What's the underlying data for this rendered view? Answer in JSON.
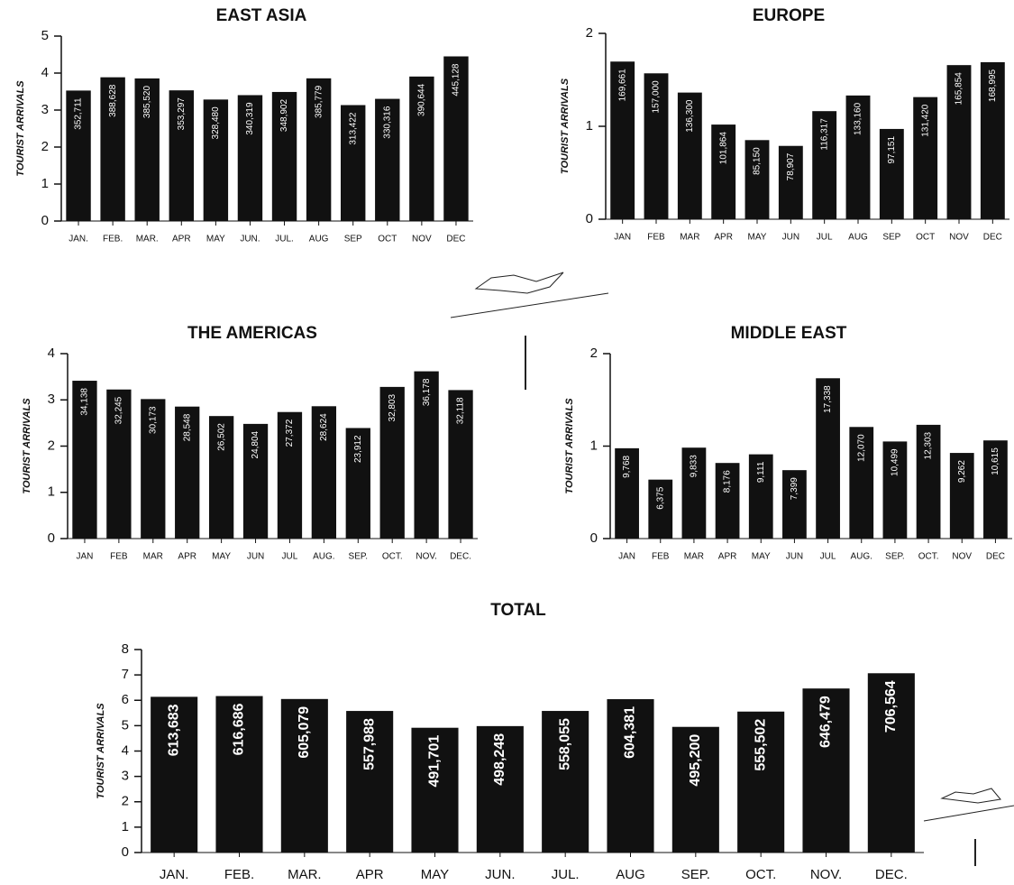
{
  "chart_data": [
    {
      "type": "bar",
      "title": "EAST ASIA",
      "y_label": "TOURIST ARRIVALS",
      "color": "#111111",
      "categories": [
        "JAN.",
        "FEB.",
        "MAR.",
        "APR",
        "MAY",
        "JUN.",
        "JUL.",
        "AUG",
        "SEP",
        "OCT",
        "NOV",
        "DEC"
      ],
      "values": [
        3.52711,
        3.88628,
        3.8552,
        3.53297,
        3.2848,
        3.40319,
        3.48902,
        3.85779,
        3.13422,
        3.30316,
        3.90644,
        4.45128
      ],
      "value_labels": [
        "352,711",
        "388,628",
        "385,520",
        "353,297",
        "328,480",
        "340,319",
        "348,902",
        "385,779",
        "313,422",
        "330,316",
        "390,644",
        "445,128"
      ],
      "ylim": [
        0,
        5
      ],
      "yticks": [
        0,
        1,
        2,
        3,
        4,
        5
      ]
    },
    {
      "type": "bar",
      "title": "EUROPE",
      "y_label": "TOURIST ARRIVALS",
      "color": "#111111",
      "categories": [
        "JAN",
        "FEB",
        "MAR",
        "APR",
        "MAY",
        "JUN",
        "JUL",
        "AUG",
        "SEP",
        "OCT",
        "NOV",
        "DEC"
      ],
      "values": [
        1.69661,
        1.57,
        1.363,
        1.01864,
        0.8515,
        0.78907,
        1.16317,
        1.3316,
        0.97151,
        1.3142,
        1.65854,
        1.68995
      ],
      "value_labels": [
        "169,661",
        "157,000",
        "136,300",
        "101,864",
        "85,150",
        "78,907",
        "116,317",
        "133,160",
        "97,151",
        "131,420",
        "165,854",
        "168,995"
      ],
      "ylim": [
        0,
        2
      ],
      "yticks": [
        0,
        1,
        2
      ]
    },
    {
      "type": "bar",
      "title": "THE AMERICAS",
      "y_label": "TOURIST ARRIVALS",
      "color": "#111111",
      "categories": [
        "JAN",
        "FEB",
        "MAR",
        "APR",
        "MAY",
        "JUN",
        "JUL",
        "AUG.",
        "SEP.",
        "OCT.",
        "NOV.",
        "DEC."
      ],
      "values": [
        3.4138,
        3.2245,
        3.0173,
        2.8548,
        2.6502,
        2.4804,
        2.7372,
        2.8624,
        2.3912,
        3.2803,
        3.6178,
        3.2118
      ],
      "value_labels": [
        "34,138",
        "32,245",
        "30,173",
        "28,548",
        "26,502",
        "24,804",
        "27,372",
        "28,624",
        "23,912",
        "32,803",
        "36,178",
        "32,118"
      ],
      "ylim": [
        0,
        4
      ],
      "yticks": [
        0,
        1,
        2,
        3,
        4
      ]
    },
    {
      "type": "bar",
      "title": "MIDDLE EAST",
      "y_label": "TOURIST ARRIVALS",
      "color": "#111111",
      "categories": [
        "JAN",
        "FEB",
        "MAR",
        "APR",
        "MAY",
        "JUN",
        "JUL",
        "AUG.",
        "SEP.",
        "OCT.",
        "NOV",
        "DEC"
      ],
      "values": [
        0.9768,
        0.6375,
        0.9833,
        0.8176,
        0.9111,
        0.7399,
        1.7338,
        1.207,
        1.0499,
        1.2303,
        0.9262,
        1.0615
      ],
      "value_labels": [
        "9,768",
        "6,375",
        "9,833",
        "8,176",
        "9,111",
        "7,399",
        "17,338",
        "12,070",
        "10,499",
        "12,303",
        "9,262",
        "10,615"
      ],
      "ylim": [
        0,
        2
      ],
      "yticks": [
        0,
        1,
        2
      ]
    },
    {
      "type": "bar",
      "title": "TOTAL",
      "y_label": "TOURIST ARRIVALS",
      "color": "#111111",
      "categories": [
        "JAN.",
        "FEB.",
        "MAR.",
        "APR",
        "MAY",
        "JUN.",
        "JUL.",
        "AUG",
        "SEP.",
        "OCT.",
        "NOV.",
        "DEC."
      ],
      "values": [
        6.13683,
        6.16686,
        6.05079,
        5.57988,
        4.91701,
        4.98248,
        5.58055,
        6.04381,
        4.952,
        5.55502,
        6.46479,
        7.06564
      ],
      "value_labels": [
        "613,683",
        "616,686",
        "605,079",
        "557,988",
        "491,701",
        "498,248",
        "558,055",
        "604,381",
        "495,200",
        "555,502",
        "646,479",
        "706,564"
      ],
      "ylim": [
        0,
        8
      ],
      "yticks": [
        0,
        1,
        2,
        3,
        4,
        5,
        6,
        7,
        8
      ]
    }
  ]
}
